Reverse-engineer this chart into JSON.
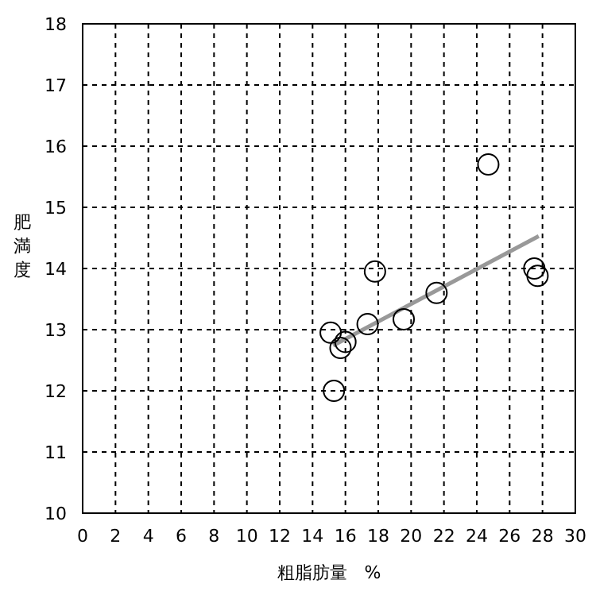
{
  "chart_data": {
    "type": "scatter",
    "xlabel": "粗脂肪量　%",
    "ylabel": "肥満度",
    "xlim": [
      0,
      30
    ],
    "ylim": [
      10,
      18
    ],
    "xticks": [
      0,
      2,
      4,
      6,
      8,
      10,
      12,
      14,
      16,
      18,
      20,
      22,
      24,
      26,
      28,
      30
    ],
    "yticks": [
      10,
      11,
      12,
      13,
      14,
      15,
      16,
      17,
      18
    ],
    "grid": true,
    "marker": "circle",
    "series": [
      {
        "type": "line",
        "color": "#999999",
        "x": [
          15.25,
          27.77
        ],
        "values": [
          12.74,
          14.53
        ],
        "marker": "none"
      },
      {
        "color": "#000000",
        "x": [
          15.1,
          15.3,
          15.7,
          16.0,
          17.35,
          17.8,
          19.55,
          21.55,
          24.7,
          27.5,
          27.7
        ],
        "values": [
          12.95,
          12.0,
          12.7,
          12.8,
          13.09,
          13.95,
          13.17,
          13.6,
          15.7,
          14.0,
          13.88
        ]
      }
    ]
  }
}
